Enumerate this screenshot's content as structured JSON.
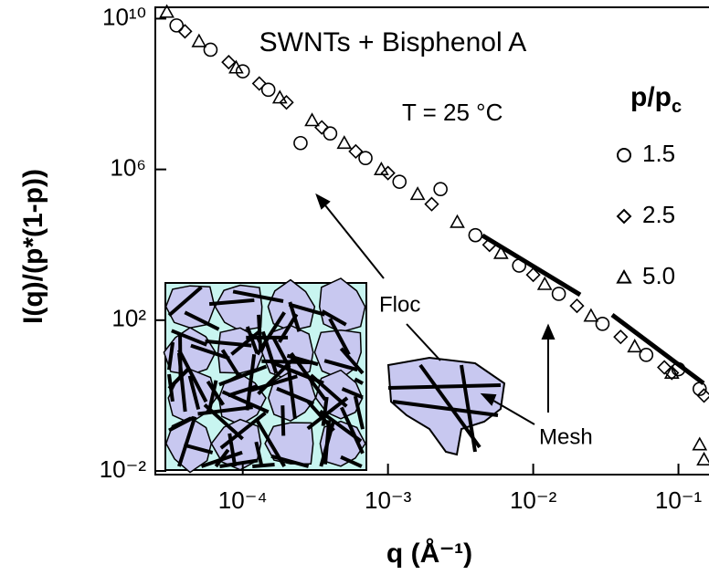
{
  "chart_data": {
    "type": "scatter",
    "title": "SWNTs + Bisphenol A",
    "annotation": "T = 25 °C",
    "x_label": "q (Å⁻¹)",
    "y_label": "I(q)/(p*(1-p))",
    "legend_title": {
      "text": "p/p",
      "subscript": "c"
    },
    "inset_labels": [
      "Floc",
      "Mesh"
    ],
    "log_x": true,
    "log_y": true,
    "xlim": [
      2.5e-05,
      0.16
    ],
    "ylim": [
      0.008,
      20000000000.0
    ],
    "xticks": [
      {
        "value": 0.0001,
        "label": "10⁻⁴"
      },
      {
        "value": 0.001,
        "label": "10⁻³"
      },
      {
        "value": 0.01,
        "label": "10⁻²"
      },
      {
        "value": 0.1,
        "label": "10⁻¹"
      }
    ],
    "yticks": [
      {
        "value": 0.01,
        "label": "10⁻²"
      },
      {
        "value": 100,
        "label": "10²"
      },
      {
        "value": 1000000,
        "label": "10⁶"
      },
      {
        "value": 10000000000,
        "label": "10¹⁰"
      }
    ],
    "series": [
      {
        "name": "1.5",
        "marker": "circle",
        "color": "#000000",
        "x": [
          3.5e-05,
          6e-05,
          0.0001,
          0.00015,
          0.00025,
          0.0004,
          0.0007,
          0.0012,
          0.0023,
          0.004,
          0.008,
          0.015,
          0.03,
          0.06,
          0.1,
          0.14
        ],
        "values": [
          6600000000.0,
          1500000000.0,
          400000000.0,
          130000000.0,
          5000000.0,
          9000000.0,
          2000000.0,
          470000.0,
          300000.0,
          18000.0,
          2800,
          500,
          80,
          12,
          5,
          1.5
        ]
      },
      {
        "name": "2.5",
        "marker": "diamond",
        "color": "#000000",
        "x": [
          4e-05,
          8e-05,
          0.00013,
          0.0002,
          0.00035,
          0.0006,
          0.001,
          0.002,
          0.005,
          0.01,
          0.02,
          0.04,
          0.08,
          0.09,
          0.15
        ],
        "values": [
          4600000000.0,
          700000000.0,
          190000000.0,
          60000000.0,
          13000000.0,
          3000000.0,
          800000.0,
          120000.0,
          10000.0,
          1600,
          240,
          36,
          5.6,
          4,
          1
        ]
      },
      {
        "name": "5.0",
        "marker": "triangle",
        "color": "#000000",
        "x": [
          3e-05,
          5e-05,
          9e-05,
          0.00018,
          0.0003,
          0.0005,
          0.0009,
          0.0016,
          0.003,
          0.006,
          0.012,
          0.025,
          0.05,
          0.09,
          0.14,
          0.15
        ],
        "values": [
          15000000000.0,
          2500000000.0,
          500000000.0,
          80000000.0,
          20000000.0,
          5000000.0,
          1000000.0,
          220000.0,
          40000.0,
          6000,
          900,
          130,
          20,
          4,
          0.05,
          0.02
        ]
      }
    ]
  }
}
